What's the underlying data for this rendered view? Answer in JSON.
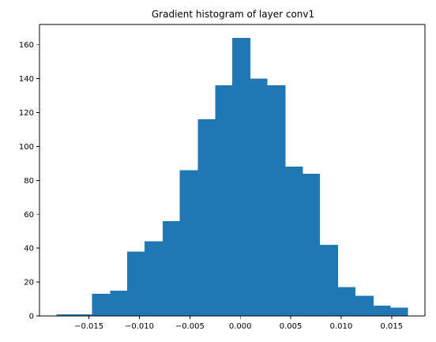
{
  "chart_data": {
    "type": "bar",
    "title": "Gradient histogram of layer conv1",
    "xlabel": "",
    "ylabel": "",
    "bin_edges": [
      -0.0182,
      -0.0164,
      -0.0147,
      -0.0129,
      -0.0112,
      -0.0095,
      -0.0077,
      -0.006,
      -0.0042,
      -0.0025,
      -0.0008,
      0.001,
      0.0027,
      0.0045,
      0.0062,
      0.0079,
      0.0097,
      0.0114,
      0.0132,
      0.0149,
      0.0166
    ],
    "counts": [
      1,
      1,
      13,
      15,
      38,
      44,
      56,
      86,
      116,
      136,
      164,
      140,
      136,
      88,
      84,
      42,
      17,
      12,
      6,
      5
    ],
    "xlim": [
      -0.0199,
      0.0183
    ],
    "ylim": [
      0,
      172
    ],
    "xticks": [
      -0.015,
      -0.01,
      -0.005,
      0.0,
      0.005,
      0.01,
      0.015
    ],
    "xtick_labels": [
      "−0.015",
      "−0.010",
      "−0.005",
      "0.000",
      "0.005",
      "0.010",
      "0.015"
    ],
    "yticks": [
      0,
      20,
      40,
      60,
      80,
      100,
      120,
      140,
      160
    ],
    "ytick_labels": [
      "0",
      "20",
      "40",
      "60",
      "80",
      "100",
      "120",
      "140",
      "160"
    ],
    "bar_color": "#1f77b4",
    "grid": false
  }
}
